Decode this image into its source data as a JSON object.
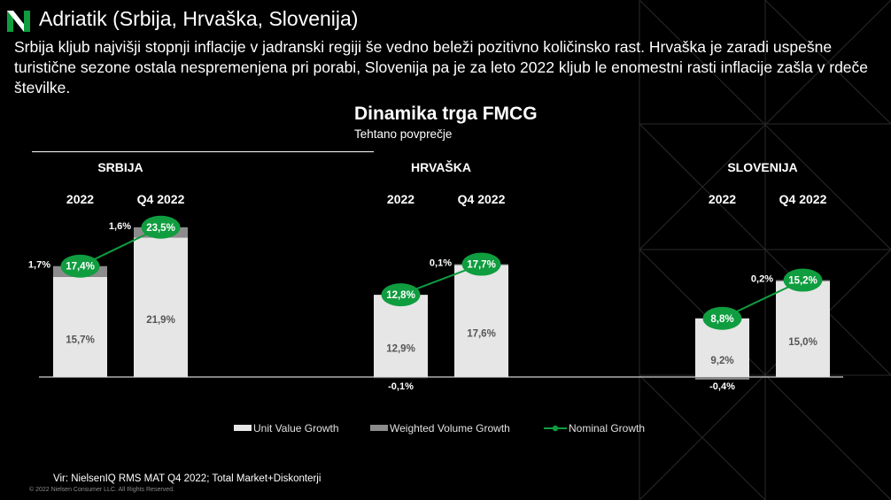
{
  "header": {
    "title": "Adriatik (Srbija, Hrvaška, Slovenija)",
    "subtitle": "Srbija kljub najvišji stopnji inflacije v jadranski regiji še vedno beleži pozitivno količinsko rast. Hrvaška je zaradi uspešne turistične sezone ostala nespremenjena pri porabi, Slovenija pa je za leto 2022 kljub le enomestni rasti inflacije zašla v rdeče številke."
  },
  "colors": {
    "background": "#000000",
    "unit_value": "#e6e6e6",
    "weighted_volume": "#8c8c8c",
    "nominal": "#0f9d3f",
    "text": "#ffffff",
    "bar_label": "#555555"
  },
  "footer": {
    "source": "Vir: NielsenIQ RMS MAT Q4 2022; Total Market+Diskonterji",
    "copyright": "© 2022 Nielsen Consumer LLC. All Rights Reserved."
  },
  "chart_data": {
    "type": "bar",
    "title": "Dinamika trga FMCG",
    "subtitle": "Tehtano povprečje",
    "stacked": true,
    "ylim": [
      -1,
      25
    ],
    "groups": [
      {
        "name": "SRBIJA",
        "categories": [
          "2022",
          "Q4 2022"
        ],
        "unit_value": [
          15.7,
          21.9
        ],
        "weighted_volume": [
          1.7,
          1.6
        ],
        "nominal": [
          17.4,
          23.5
        ],
        "unit_value_labels": [
          "15,7%",
          "21,9%"
        ],
        "weighted_volume_labels": [
          "1,7%",
          "1,6%"
        ],
        "nominal_labels": [
          "17,4%",
          "23,5%"
        ]
      },
      {
        "name": "HRVAŠKA",
        "categories": [
          "2022",
          "Q4 2022"
        ],
        "unit_value": [
          12.9,
          17.6
        ],
        "weighted_volume": [
          -0.1,
          0.1
        ],
        "nominal": [
          12.8,
          17.7
        ],
        "unit_value_labels": [
          "12,9%",
          "17,6%"
        ],
        "weighted_volume_labels": [
          "-0,1%",
          "0,1%"
        ],
        "nominal_labels": [
          "12,8%",
          "17,7%"
        ]
      },
      {
        "name": "SLOVENIJA",
        "categories": [
          "2022",
          "Q4 2022"
        ],
        "unit_value": [
          9.2,
          15.0
        ],
        "weighted_volume": [
          -0.4,
          0.2
        ],
        "nominal": [
          8.8,
          15.2
        ],
        "unit_value_labels": [
          "9,2%",
          "15,0%"
        ],
        "weighted_volume_labels": [
          "-0,4%",
          "0,2%"
        ],
        "nominal_labels": [
          "8,8%",
          "15,2%"
        ]
      }
    ],
    "legend": [
      "Unit Value Growth",
      "Weighted Volume Growth",
      "Nominal Growth"
    ],
    "legend_position": "bottom"
  }
}
